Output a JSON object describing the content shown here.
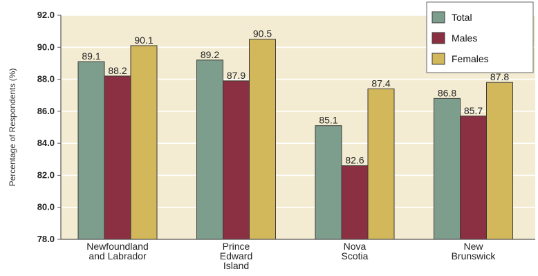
{
  "chart_data": {
    "type": "bar",
    "title": "",
    "xlabel": "",
    "ylabel": "Percentage of Respondents (%)",
    "ylim": [
      78.0,
      92.0
    ],
    "yticks": [
      "78.0",
      "80.0",
      "82.0",
      "84.0",
      "86.0",
      "88.0",
      "90.0",
      "92.0"
    ],
    "grid": true,
    "legend_position": "top-right",
    "categories": [
      [
        "Newfoundland",
        "and Labrador"
      ],
      [
        "Prince",
        "Edward",
        "Island"
      ],
      [
        "Nova",
        "Scotia"
      ],
      [
        "New",
        "Brunswick"
      ]
    ],
    "series": [
      {
        "name": "Total",
        "color": "#7d9e8c",
        "values": [
          89.1,
          89.2,
          85.1,
          86.8
        ],
        "labels": [
          "89.1",
          "89.2",
          "85.1",
          "86.8"
        ]
      },
      {
        "name": "Males",
        "color": "#8b2f42",
        "values": [
          88.2,
          87.9,
          82.6,
          85.7
        ],
        "labels": [
          "88.2",
          "87.9",
          "82.6",
          "85.7"
        ]
      },
      {
        "name": "Females",
        "color": "#d2b75b",
        "values": [
          90.1,
          90.5,
          87.4,
          87.8
        ],
        "labels": [
          "90.1",
          "90.5",
          "87.4",
          "87.8"
        ]
      }
    ],
    "plot_background": "#f4ecd2"
  }
}
